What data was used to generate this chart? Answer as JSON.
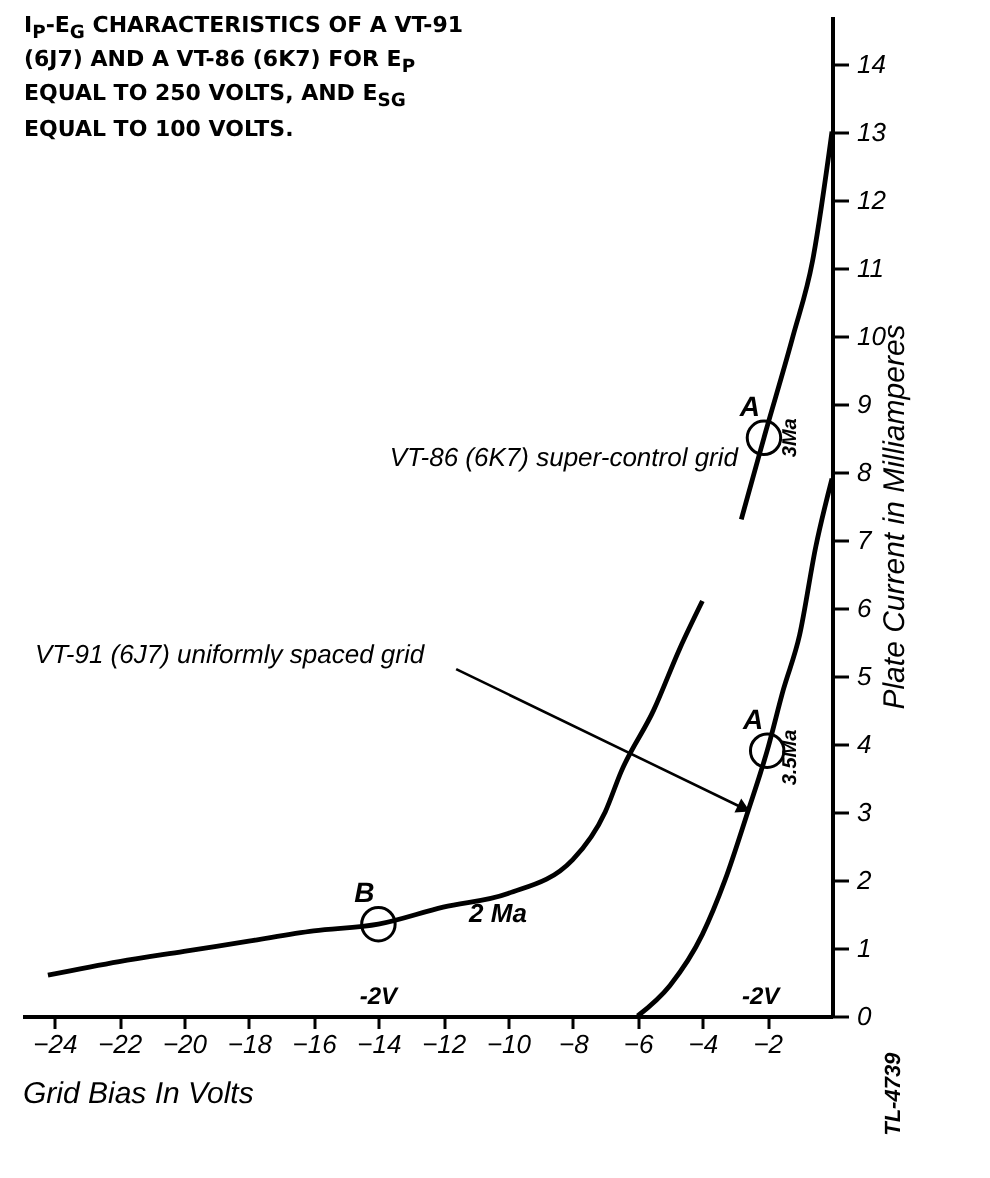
{
  "chart_data": {
    "type": "line",
    "title": "I$_{P}$-E$_{G}$ CHARACTERISTICS OF A VT-91 (6J7) AND A VT-86 (6K7) FOR E$_{P}$ EQUAL TO 250 VOLTS, AND E$_{SG}$ EQUAL TO 100 VOLTS.",
    "xlabel": "Grid Bias In Volts",
    "ylabel": "Plate Current in Milliamperes",
    "xlim": [
      -25,
      0
    ],
    "ylim": [
      0,
      14.7
    ],
    "xticks": [
      -24,
      -22,
      -20,
      -18,
      -16,
      -14,
      -12,
      -10,
      -8,
      -6,
      -4,
      -2
    ],
    "yticks": [
      0,
      1,
      2,
      3,
      4,
      5,
      6,
      7,
      8,
      9,
      10,
      11,
      12,
      13,
      14
    ],
    "grid": false,
    "legend": false,
    "marker": "none",
    "line_style": "solid",
    "series": [
      {
        "name": "VT-86 (6K7) super-control grid",
        "color": "#000000",
        "x": [
          -24.2,
          -22,
          -20,
          -18,
          -16,
          -14,
          -12,
          -10,
          -8,
          -7,
          -6.5,
          -5.5,
          -4.7,
          -4.0,
          -3.4,
          -2.8,
          -2.1,
          -1.2,
          -0.6,
          0
        ],
        "values": [
          0.6,
          0.8,
          0.95,
          1.1,
          1.25,
          1.35,
          1.6,
          1.8,
          2.3,
          3.0,
          3.6,
          4.5,
          5.4,
          6.1,
          null,
          7.3,
          8.5,
          10,
          11.1,
          13
        ]
      },
      {
        "name": "VT-91 (6J7) uniformly spaced grid",
        "color": "#000000",
        "x": [
          -6,
          -5,
          -4,
          -3.3,
          -2.6,
          -2,
          -1.5,
          -1,
          -0.5,
          0
        ],
        "values": [
          0,
          0.45,
          1.2,
          2,
          3,
          3.9,
          4.8,
          5.6,
          6.9,
          7.9
        ]
      }
    ],
    "annotations": [
      {
        "text": "A",
        "x": -2.1,
        "y": 8.5
      },
      {
        "text": "A",
        "x": -2,
        "y": 3.9
      },
      {
        "text": "B",
        "x": -14,
        "y": 1.35
      },
      "2 Ma",
      "3Ma",
      "3.5Ma",
      "-2V",
      "-2V",
      "TL-4739"
    ]
  }
}
